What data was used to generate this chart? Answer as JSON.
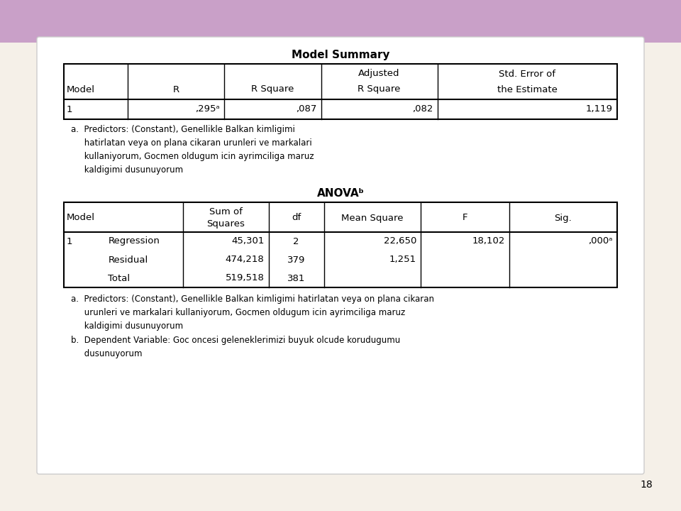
{
  "bg_color": "#f5f0e8",
  "top_bar_color": "#c9a0c8",
  "page_number": "18",
  "model_summary_title": "Model Summary",
  "model_summary_headers_row1": [
    "",
    "",
    "",
    "Adjusted",
    "Std. Error of"
  ],
  "model_summary_headers_row2": [
    "Model",
    "R",
    "R Square",
    "R Square",
    "the Estimate"
  ],
  "model_summary_data": [
    "1",
    ",295ᵃ",
    ",087",
    ",082",
    "1,119"
  ],
  "model_summary_note": "a.  Predictors: (Constant), Genellikle Balkan kimligimi\n     hatirlatan veya on plana cikaran urunleri ve markalari\n     kullaniyorum, Gocmen oldugum icin ayrimciliga maruz\n     kaldigimi dusunuyorum",
  "anova_title": "ANOVAᵇ",
  "anova_headers_row1": [
    "",
    "",
    "Sum of",
    "",
    "",
    "",
    ""
  ],
  "anova_headers_row2": [
    "Model",
    "",
    "Squares",
    "df",
    "Mean Square",
    "F",
    "Sig."
  ],
  "anova_rows": [
    [
      "1",
      "Regression",
      "45,301",
      "2",
      "22,650",
      "18,102",
      ",000ᵃ"
    ],
    [
      "",
      "Residual",
      "474,218",
      "379",
      "1,251",
      "",
      ""
    ],
    [
      "",
      "Total",
      "519,518",
      "381",
      "",
      "",
      ""
    ]
  ],
  "anova_note_a": "a.  Predictors: (Constant), Genellikle Balkan kimligimi hatirlatan veya on plana cikaran\n     urunleri ve markalari kullaniyorum, Gocmen oldugum icin ayrimciliga maruz\n     kaldigimi dusunuyorum",
  "anova_note_b": "b.  Dependent Variable: Goc oncesi geleneklerimizi buyuk olcude korudugumu\n     dusunuyorum"
}
